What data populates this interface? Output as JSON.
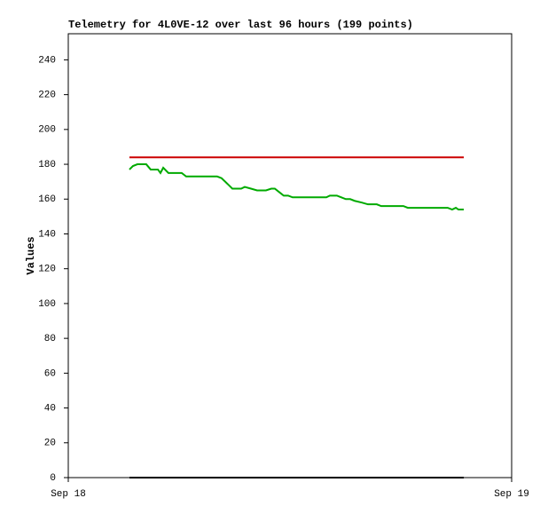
{
  "chart_data": {
    "type": "line",
    "title": "Telemetry for 4L0VE-12 over last 96 hours (199 points)",
    "y_label": "Values",
    "x": [
      3.31,
      3.5,
      3.74,
      4.22,
      4.46,
      4.85,
      4.99,
      5.14,
      5.42,
      5.81,
      6.14,
      6.38,
      8.06,
      8.3,
      8.69,
      8.88,
      9.36,
      9.55,
      9.89,
      10.22,
      10.7,
      10.99,
      11.18,
      11.42,
      11.66,
      11.9,
      12.14,
      13.97,
      14.16,
      14.54,
      14.78,
      15.02,
      15.26,
      15.5,
      15.89,
      16.22,
      16.7,
      16.94,
      18.14,
      18.38,
      20.54,
      20.78,
      20.98,
      21.12,
      21.41
    ],
    "series": [
      {
        "color": "#00aa00",
        "values": [
          177,
          179,
          180,
          180,
          177,
          177,
          175,
          178,
          175,
          175,
          175,
          173,
          173,
          172,
          168,
          166,
          166,
          167,
          166,
          165,
          165,
          166,
          166,
          164,
          162,
          162,
          161,
          161,
          162,
          162,
          161,
          160,
          160,
          159,
          158,
          157,
          157,
          156,
          156,
          155,
          155,
          154,
          155,
          154,
          154
        ]
      },
      {
        "color": "#cc0000",
        "values": [
          184,
          184,
          184,
          184,
          184,
          184,
          184,
          184,
          184,
          184,
          184,
          184,
          184,
          184,
          184,
          184,
          184,
          184,
          184,
          184,
          184,
          184,
          184,
          184,
          184,
          184,
          184,
          184,
          184,
          184,
          184,
          184,
          184,
          184,
          184,
          184,
          184,
          184,
          184,
          184,
          184,
          184,
          184,
          184,
          184
        ]
      },
      {
        "color": "#000000",
        "values": [
          0,
          0,
          0,
          0,
          0,
          0,
          0,
          0,
          0,
          0,
          0,
          0,
          0,
          0,
          0,
          0,
          0,
          0,
          0,
          0,
          0,
          0,
          0,
          0,
          0,
          0,
          0,
          0,
          0,
          0,
          0,
          0,
          0,
          0,
          0,
          0,
          0,
          0,
          0,
          0,
          0,
          0,
          0,
          0,
          0
        ]
      }
    ],
    "xlim": [
      0,
      24
    ],
    "xticks": [
      {
        "value": 0,
        "label": "Sep 18"
      },
      {
        "value": 24,
        "label": "Sep 19"
      }
    ],
    "ylim": [
      0,
      255
    ],
    "yticks": [
      0,
      20,
      40,
      60,
      80,
      100,
      120,
      140,
      160,
      180,
      200,
      220,
      240
    ]
  }
}
